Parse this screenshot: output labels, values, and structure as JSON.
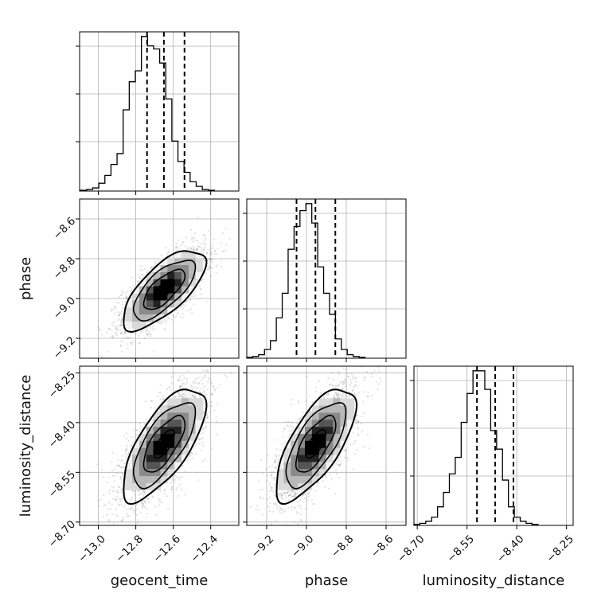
{
  "chart_data": {
    "type": "corner",
    "colors": {
      "line": "#000000",
      "grid": "#b0b0b0",
      "points": "#555555"
    },
    "params": [
      {
        "name": "geocent_time",
        "label": "geocent_time",
        "range": [
          -13.1,
          -12.25
        ],
        "ticks": [
          -13.0,
          -12.8,
          -12.6,
          -12.4
        ],
        "tick_labels": [
          "−13.0",
          "−12.8",
          "−12.6",
          "−12.4"
        ],
        "quantiles": [
          -12.74,
          -12.65,
          -12.54
        ]
      },
      {
        "name": "phase",
        "label": "phase",
        "range": [
          -9.3,
          -8.5
        ],
        "ticks": [
          -9.2,
          -9.0,
          -8.8,
          -8.6
        ],
        "tick_labels": [
          "−9.2",
          "−9.0",
          "−8.8",
          "−8.6"
        ],
        "quantiles": [
          -9.05,
          -8.955,
          -8.855
        ]
      },
      {
        "name": "luminosity_distance",
        "label": "luminosity_distance",
        "range": [
          -8.71,
          -8.23
        ],
        "ticks": [
          -8.7,
          -8.55,
          -8.4,
          -8.25
        ],
        "tick_labels": [
          "−8.70",
          "−8.55",
          "−8.40",
          "−8.25"
        ],
        "quantiles": [
          -8.52,
          -8.465,
          -8.41
        ]
      }
    ],
    "histograms": [
      {
        "param": "geocent_time",
        "bin_start": -13.095,
        "bin_width": 0.0325,
        "counts": [
          0.5,
          1,
          2,
          5,
          10,
          17,
          24,
          52,
          70,
          77,
          99,
          93,
          91,
          82,
          59,
          32,
          19,
          12,
          6,
          3,
          1,
          0.5
        ]
      },
      {
        "param": "phase",
        "bin_start": -9.3,
        "bin_width": 0.0297,
        "counts": [
          0.5,
          1,
          2,
          5,
          10,
          23,
          37,
          62,
          75,
          84,
          88,
          77,
          52,
          37,
          25,
          11,
          5,
          2,
          1,
          0.5
        ]
      },
      {
        "param": "luminosity_distance",
        "bin_start": -8.71,
        "bin_width": 0.0178,
        "counts": [
          0.5,
          1,
          2,
          4,
          9,
          16,
          25,
          33,
          50,
          64,
          75,
          75,
          66,
          46,
          37,
          22,
          9,
          4,
          2,
          1,
          0.5
        ]
      }
    ],
    "joint": [
      {
        "x": "geocent_time",
        "y": "phase",
        "mean": [
          -12.65,
          -8.955
        ],
        "sd": [
          0.11,
          0.1
        ],
        "rho": 0.7
      },
      {
        "x": "geocent_time",
        "y": "luminosity_distance",
        "mean": [
          -12.65,
          -8.465
        ],
        "sd": [
          0.11,
          0.085
        ],
        "rho": 0.7
      },
      {
        "x": "phase",
        "y": "luminosity_distance",
        "mean": [
          -8.955,
          -8.465
        ],
        "sd": [
          0.1,
          0.085
        ],
        "rho": 0.7
      }
    ],
    "grid": true
  }
}
